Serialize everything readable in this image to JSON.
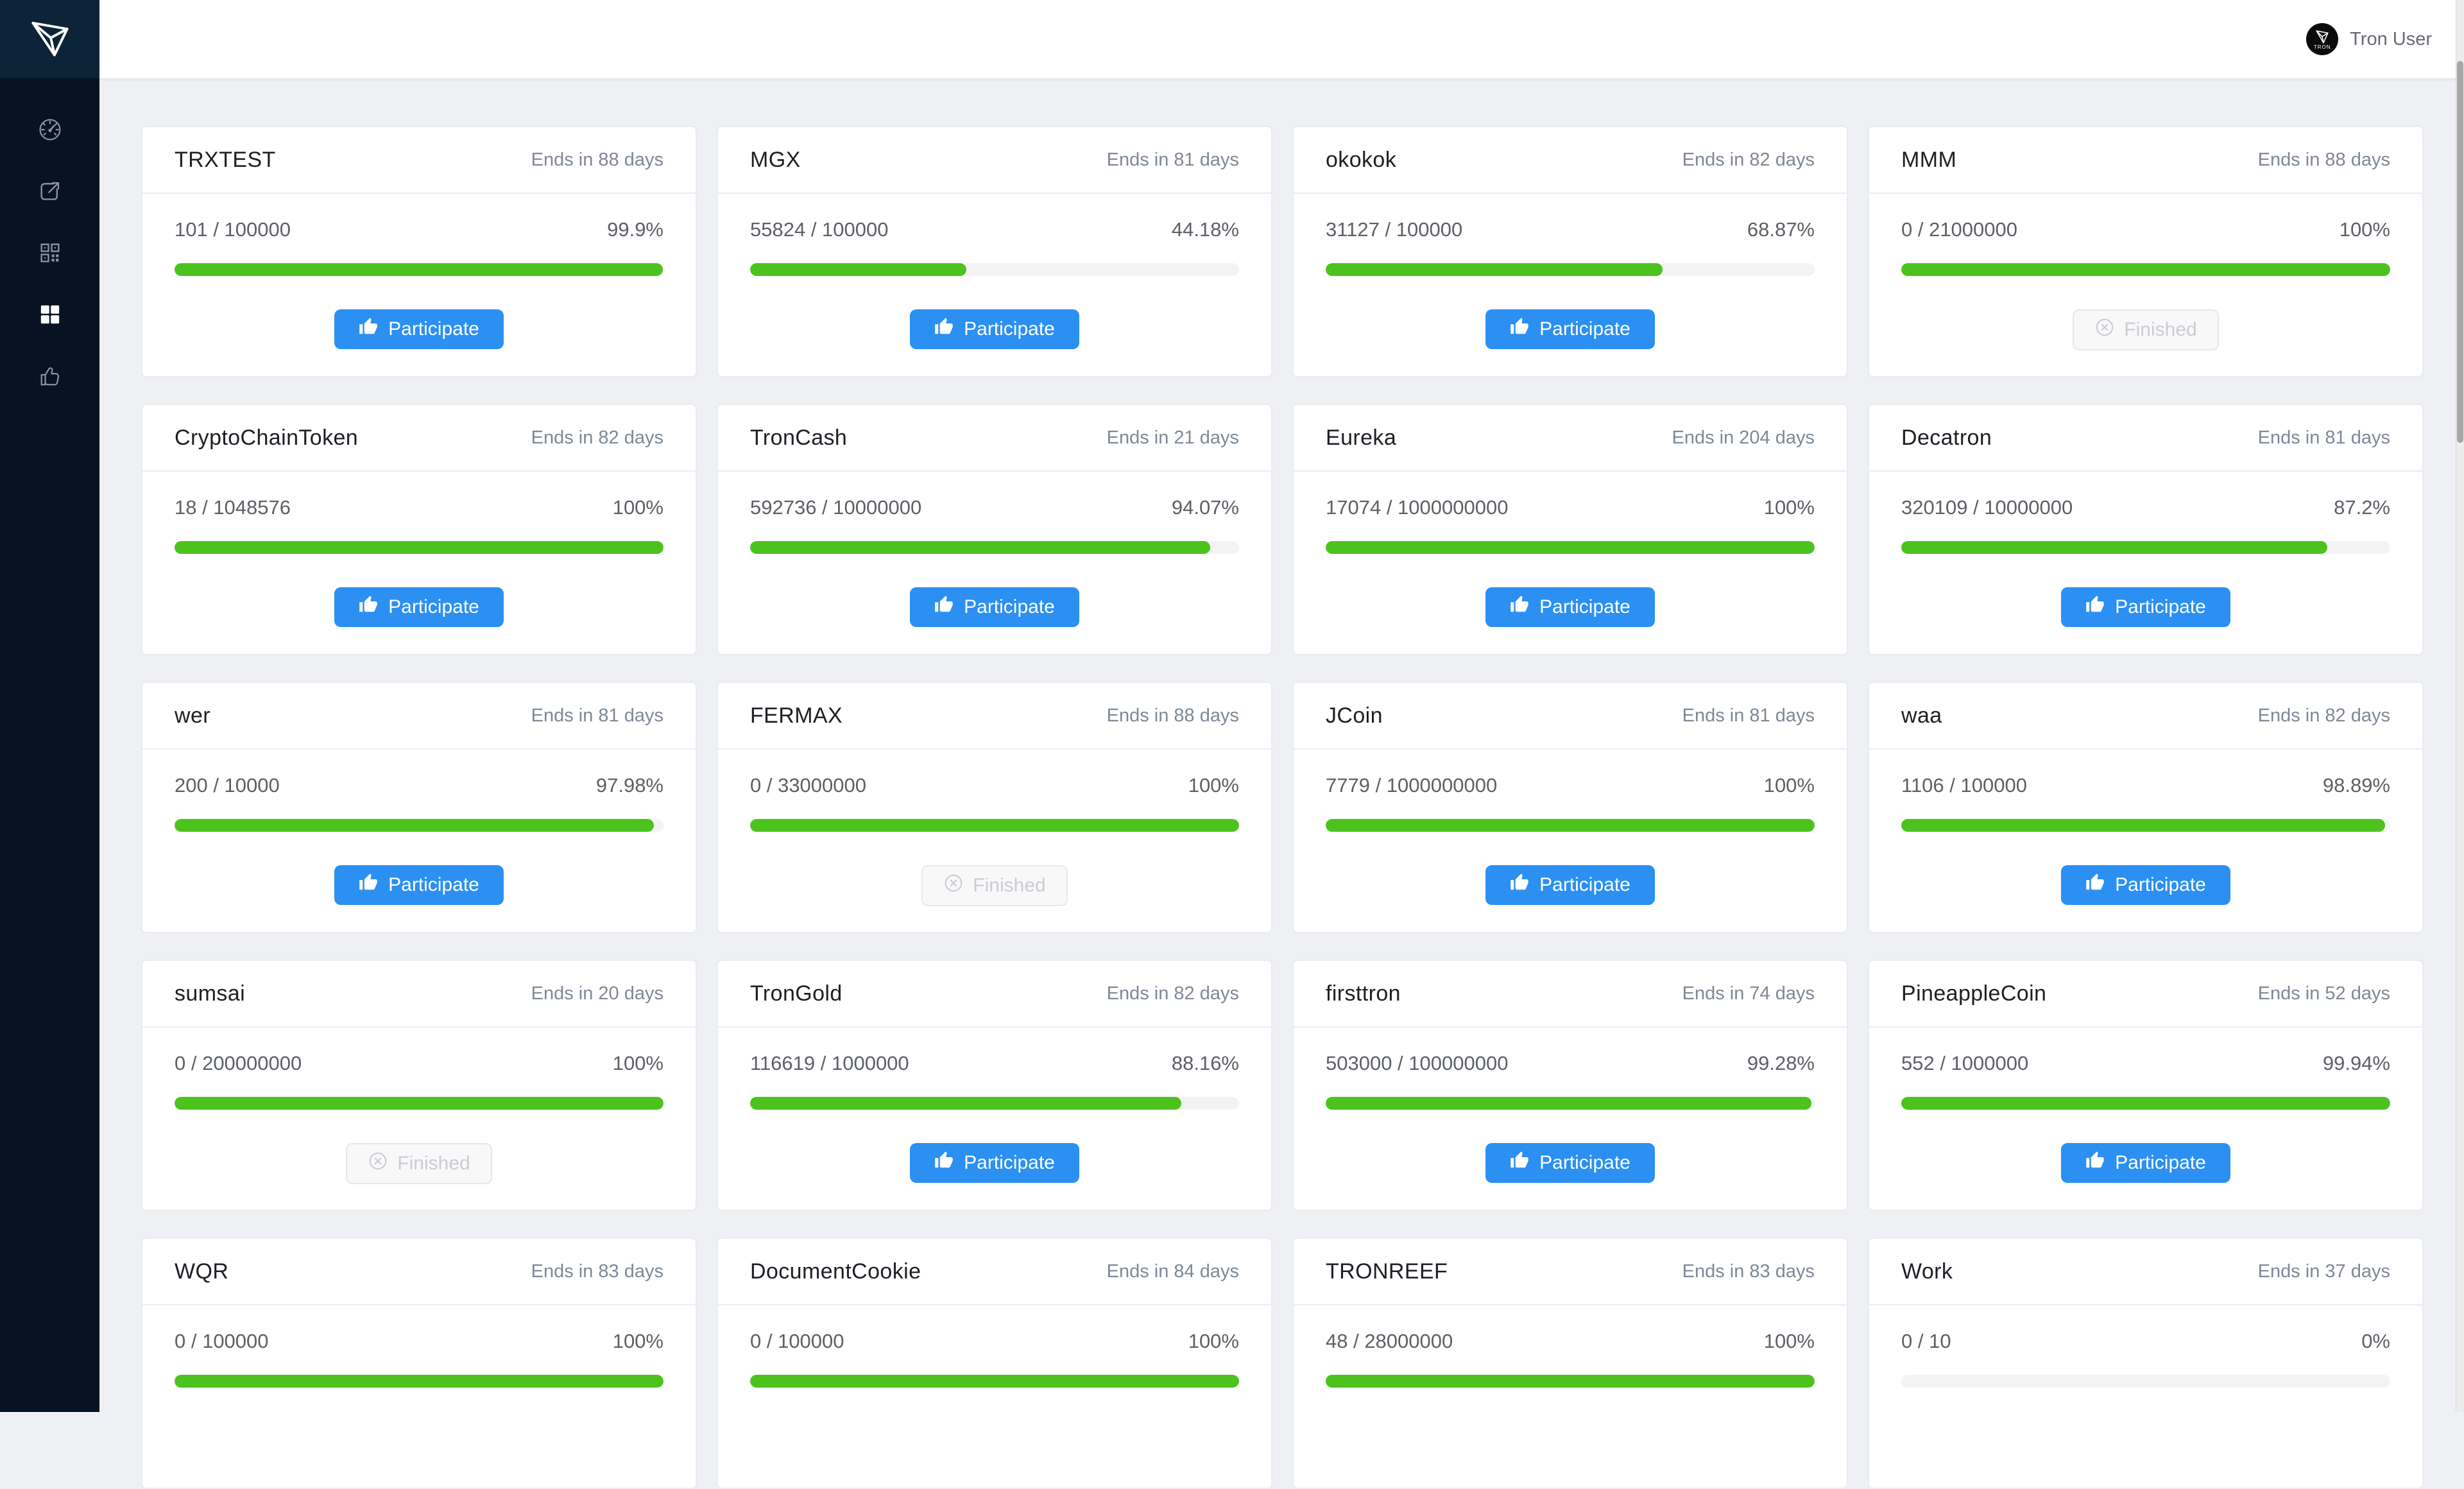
{
  "header": {
    "user_label": "Tron User"
  },
  "sidebar": {
    "logo_icon": "tron-logo-icon",
    "items": [
      {
        "id": "dashboard",
        "icon": "speedometer-icon",
        "active": false
      },
      {
        "id": "send",
        "icon": "share-icon",
        "active": false
      },
      {
        "id": "receive",
        "icon": "qr-code-icon",
        "active": false
      },
      {
        "id": "token-sales",
        "icon": "grid-icon",
        "active": true
      },
      {
        "id": "votes",
        "icon": "thumbs-up-icon",
        "active": false
      }
    ]
  },
  "buttons": {
    "participate_label": "Participate",
    "finished_label": "Finished"
  },
  "colors": {
    "accent_blue": "#2b90f2",
    "progress_green": "#4cc31d",
    "progress_track": "#f3f3f5",
    "page_bg": "#eef0f4",
    "sidebar_bg": "#071322",
    "sidebar_logo_bg": "#0d2337",
    "finished_text": "#c9ccd3"
  },
  "cards": [
    {
      "name": "TRXTEST",
      "ends_label": "Ends in 88 days",
      "raised_fraction": "101 / 100000",
      "percent_label": "99.9%",
      "percent_value": 99.9,
      "action": "participate"
    },
    {
      "name": "MGX",
      "ends_label": "Ends in 81 days",
      "raised_fraction": "55824 / 100000",
      "percent_label": "44.18%",
      "percent_value": 44.18,
      "action": "participate"
    },
    {
      "name": "okokok",
      "ends_label": "Ends in 82 days",
      "raised_fraction": "31127 / 100000",
      "percent_label": "68.87%",
      "percent_value": 68.87,
      "action": "participate"
    },
    {
      "name": "MMM",
      "ends_label": "Ends in 88 days",
      "raised_fraction": "0 / 21000000",
      "percent_label": "100%",
      "percent_value": 100,
      "action": "finished"
    },
    {
      "name": "CryptoChainToken",
      "ends_label": "Ends in 82 days",
      "raised_fraction": "18 / 1048576",
      "percent_label": "100%",
      "percent_value": 100,
      "action": "participate"
    },
    {
      "name": "TronCash",
      "ends_label": "Ends in 21 days",
      "raised_fraction": "592736 / 10000000",
      "percent_label": "94.07%",
      "percent_value": 94.07,
      "action": "participate"
    },
    {
      "name": "Eureka",
      "ends_label": "Ends in 204 days",
      "raised_fraction": "17074 / 1000000000",
      "percent_label": "100%",
      "percent_value": 100,
      "action": "participate"
    },
    {
      "name": "Decatron",
      "ends_label": "Ends in 81 days",
      "raised_fraction": "320109 / 10000000",
      "percent_label": "87.2%",
      "percent_value": 87.2,
      "action": "participate"
    },
    {
      "name": "wer",
      "ends_label": "Ends in 81 days",
      "raised_fraction": "200 / 10000",
      "percent_label": "97.98%",
      "percent_value": 97.98,
      "action": "participate"
    },
    {
      "name": "FERMAX",
      "ends_label": "Ends in 88 days",
      "raised_fraction": "0 / 33000000",
      "percent_label": "100%",
      "percent_value": 100,
      "action": "finished"
    },
    {
      "name": "JCoin",
      "ends_label": "Ends in 81 days",
      "raised_fraction": "7779 / 1000000000",
      "percent_label": "100%",
      "percent_value": 100,
      "action": "participate"
    },
    {
      "name": "waa",
      "ends_label": "Ends in 82 days",
      "raised_fraction": "1106 / 100000",
      "percent_label": "98.89%",
      "percent_value": 98.89,
      "action": "participate"
    },
    {
      "name": "sumsai",
      "ends_label": "Ends in 20 days",
      "raised_fraction": "0 / 200000000",
      "percent_label": "100%",
      "percent_value": 100,
      "action": "finished"
    },
    {
      "name": "TronGold",
      "ends_label": "Ends in 82 days",
      "raised_fraction": "116619 / 1000000",
      "percent_label": "88.16%",
      "percent_value": 88.16,
      "action": "participate"
    },
    {
      "name": "firsttron",
      "ends_label": "Ends in 74 days",
      "raised_fraction": "503000 / 100000000",
      "percent_label": "99.28%",
      "percent_value": 99.28,
      "action": "participate"
    },
    {
      "name": "PineappleCoin",
      "ends_label": "Ends in 52 days",
      "raised_fraction": "552 / 1000000",
      "percent_label": "99.94%",
      "percent_value": 99.94,
      "action": "participate"
    },
    {
      "name": "WQR",
      "ends_label": "Ends in 83 days",
      "raised_fraction": "0 / 100000",
      "percent_label": "100%",
      "percent_value": 100,
      "action": ""
    },
    {
      "name": "DocumentCookie",
      "ends_label": "Ends in 84 days",
      "raised_fraction": "0 / 100000",
      "percent_label": "100%",
      "percent_value": 100,
      "action": ""
    },
    {
      "name": "TRONREEF",
      "ends_label": "Ends in 83 days",
      "raised_fraction": "48 / 28000000",
      "percent_label": "100%",
      "percent_value": 100,
      "action": ""
    },
    {
      "name": "Work",
      "ends_label": "Ends in 37 days",
      "raised_fraction": "0 / 10",
      "percent_label": "0%",
      "percent_value": 0,
      "action": ""
    }
  ]
}
